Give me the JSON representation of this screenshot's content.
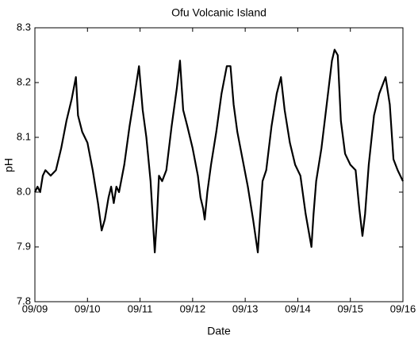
{
  "chart_data": {
    "type": "line",
    "title": "Ofu Volcanic Island",
    "x_label": "Date",
    "y_label": "pH",
    "x": [
      0,
      0.05,
      0.1,
      0.15,
      0.2,
      0.3,
      0.4,
      0.5,
      0.6,
      0.7,
      0.78,
      0.82,
      0.9,
      1.0,
      1.1,
      1.2,
      1.27,
      1.33,
      1.4,
      1.45,
      1.5,
      1.55,
      1.6,
      1.7,
      1.8,
      1.9,
      1.98,
      2.05,
      2.12,
      2.2,
      2.28,
      2.32,
      2.36,
      2.42,
      2.5,
      2.6,
      2.7,
      2.76,
      2.82,
      2.9,
      3.0,
      3.1,
      3.15,
      3.2,
      3.23,
      3.28,
      3.35,
      3.45,
      3.55,
      3.65,
      3.72,
      3.78,
      3.85,
      3.95,
      4.05,
      4.15,
      4.24,
      4.28,
      4.33,
      4.4,
      4.5,
      4.6,
      4.68,
      4.75,
      4.85,
      4.95,
      5.05,
      5.15,
      5.26,
      5.3,
      5.35,
      5.45,
      5.55,
      5.65,
      5.7,
      5.76,
      5.82,
      5.9,
      6.0,
      6.1,
      6.17,
      6.23,
      6.28,
      6.35,
      6.45,
      6.55,
      6.67,
      6.75,
      6.82,
      6.9,
      6.95,
      7.0
    ],
    "series": [
      {
        "color": "#000000",
        "values": [
          8.0,
          8.01,
          8.0,
          8.03,
          8.04,
          8.03,
          8.04,
          8.08,
          8.13,
          8.17,
          8.21,
          8.14,
          8.11,
          8.09,
          8.04,
          7.98,
          7.93,
          7.95,
          7.99,
          8.01,
          7.98,
          8.01,
          8.0,
          8.05,
          8.12,
          8.18,
          8.23,
          8.15,
          8.1,
          8.02,
          7.89,
          7.95,
          8.03,
          8.02,
          8.04,
          8.12,
          8.19,
          8.24,
          8.15,
          8.12,
          8.08,
          8.03,
          7.99,
          7.97,
          7.95,
          8.0,
          8.05,
          8.11,
          8.18,
          8.23,
          8.23,
          8.16,
          8.11,
          8.06,
          8.01,
          7.95,
          7.89,
          7.95,
          8.02,
          8.04,
          8.12,
          8.18,
          8.21,
          8.15,
          8.09,
          8.05,
          8.03,
          7.96,
          7.9,
          7.96,
          8.02,
          8.08,
          8.16,
          8.24,
          8.26,
          8.25,
          8.13,
          8.07,
          8.05,
          8.04,
          7.97,
          7.92,
          7.96,
          8.05,
          8.14,
          8.18,
          8.21,
          8.16,
          8.06,
          8.04,
          8.03,
          8.02
        ]
      }
    ],
    "xlim": [
      0,
      7
    ],
    "xticks": [
      {
        "value": 0,
        "label": "09/09"
      },
      {
        "value": 1,
        "label": "09/10"
      },
      {
        "value": 2,
        "label": "09/11"
      },
      {
        "value": 3,
        "label": "09/12"
      },
      {
        "value": 4,
        "label": "09/13"
      },
      {
        "value": 5,
        "label": "09/14"
      },
      {
        "value": 6,
        "label": "09/15"
      },
      {
        "value": 7,
        "label": "09/16"
      }
    ],
    "ylim": [
      7.8,
      8.3
    ],
    "yticks": [
      7.8,
      7.9,
      {
        "value": 8,
        "label": "8.0"
      },
      8.1,
      8.2,
      8.3
    ],
    "grid": false
  }
}
